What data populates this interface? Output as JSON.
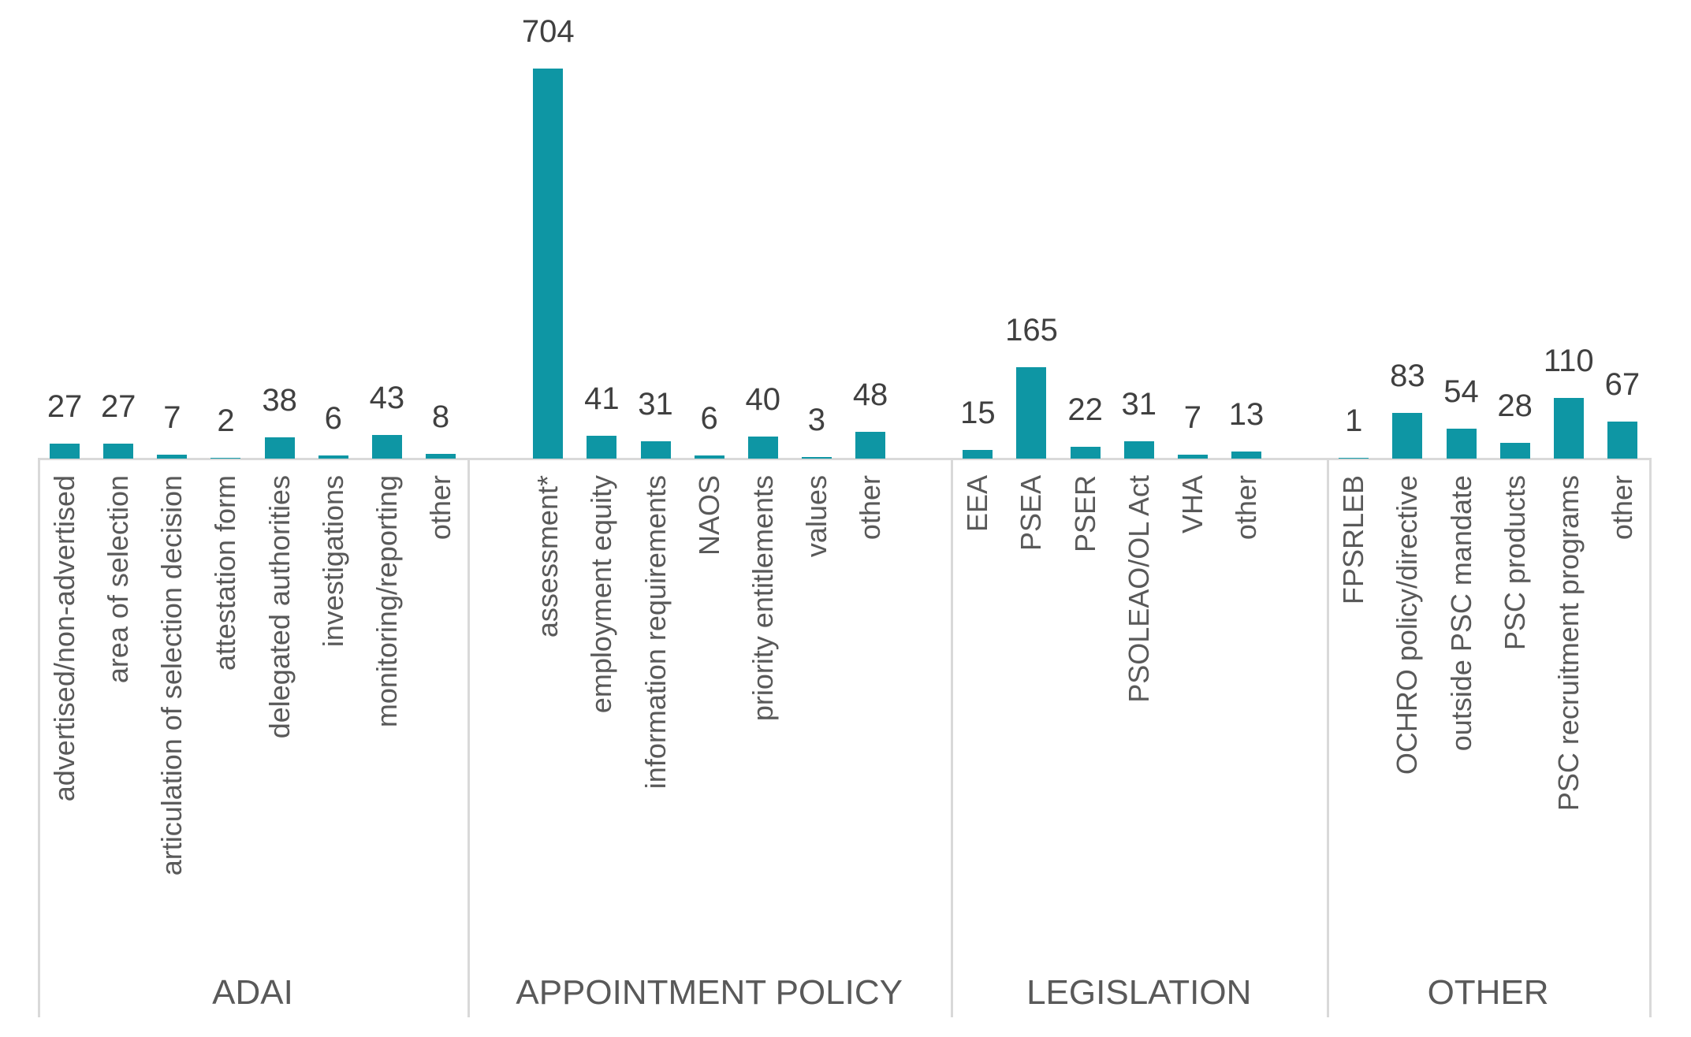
{
  "chart_data": {
    "type": "bar",
    "title": "",
    "xlabel": "",
    "ylabel": "",
    "ylim": [
      0,
      704
    ],
    "grid": false,
    "legend": false,
    "bar_color": "#0E96A4",
    "axis_line_color": "#D9D9D9",
    "category_label_color": "#595959",
    "group_label_color": "#595959",
    "value_label_color": "#404040",
    "groups": [
      {
        "label": "ADAI",
        "categories": [
          "advertised/non-advertised",
          "area of selection",
          "articulation of selection decision",
          "attestation form",
          "delegated authorities",
          "investigations",
          "monitoring/reporting",
          "other"
        ],
        "values": [
          27,
          27,
          7,
          2,
          38,
          6,
          43,
          8
        ]
      },
      {
        "label": "APPOINTMENT POLICY",
        "categories": [
          "assessment*",
          "employment equity",
          "information requirements",
          "NAOS",
          "priority entitlements",
          "values",
          "other"
        ],
        "values": [
          704,
          41,
          31,
          6,
          40,
          3,
          48
        ]
      },
      {
        "label": "LEGISLATION",
        "categories": [
          "EEA",
          "PSEA",
          "PSER",
          "PSOLEAO/OL Act",
          "VHA",
          "other"
        ],
        "values": [
          15,
          165,
          22,
          31,
          7,
          13
        ]
      },
      {
        "label": "OTHER",
        "categories": [
          "FPSRLEB",
          "OCHRO policy/directive",
          "outside PSC mandate",
          "PSC products",
          "PSC recruitment programs",
          "other"
        ],
        "values": [
          1,
          83,
          54,
          28,
          110,
          67
        ]
      }
    ]
  }
}
